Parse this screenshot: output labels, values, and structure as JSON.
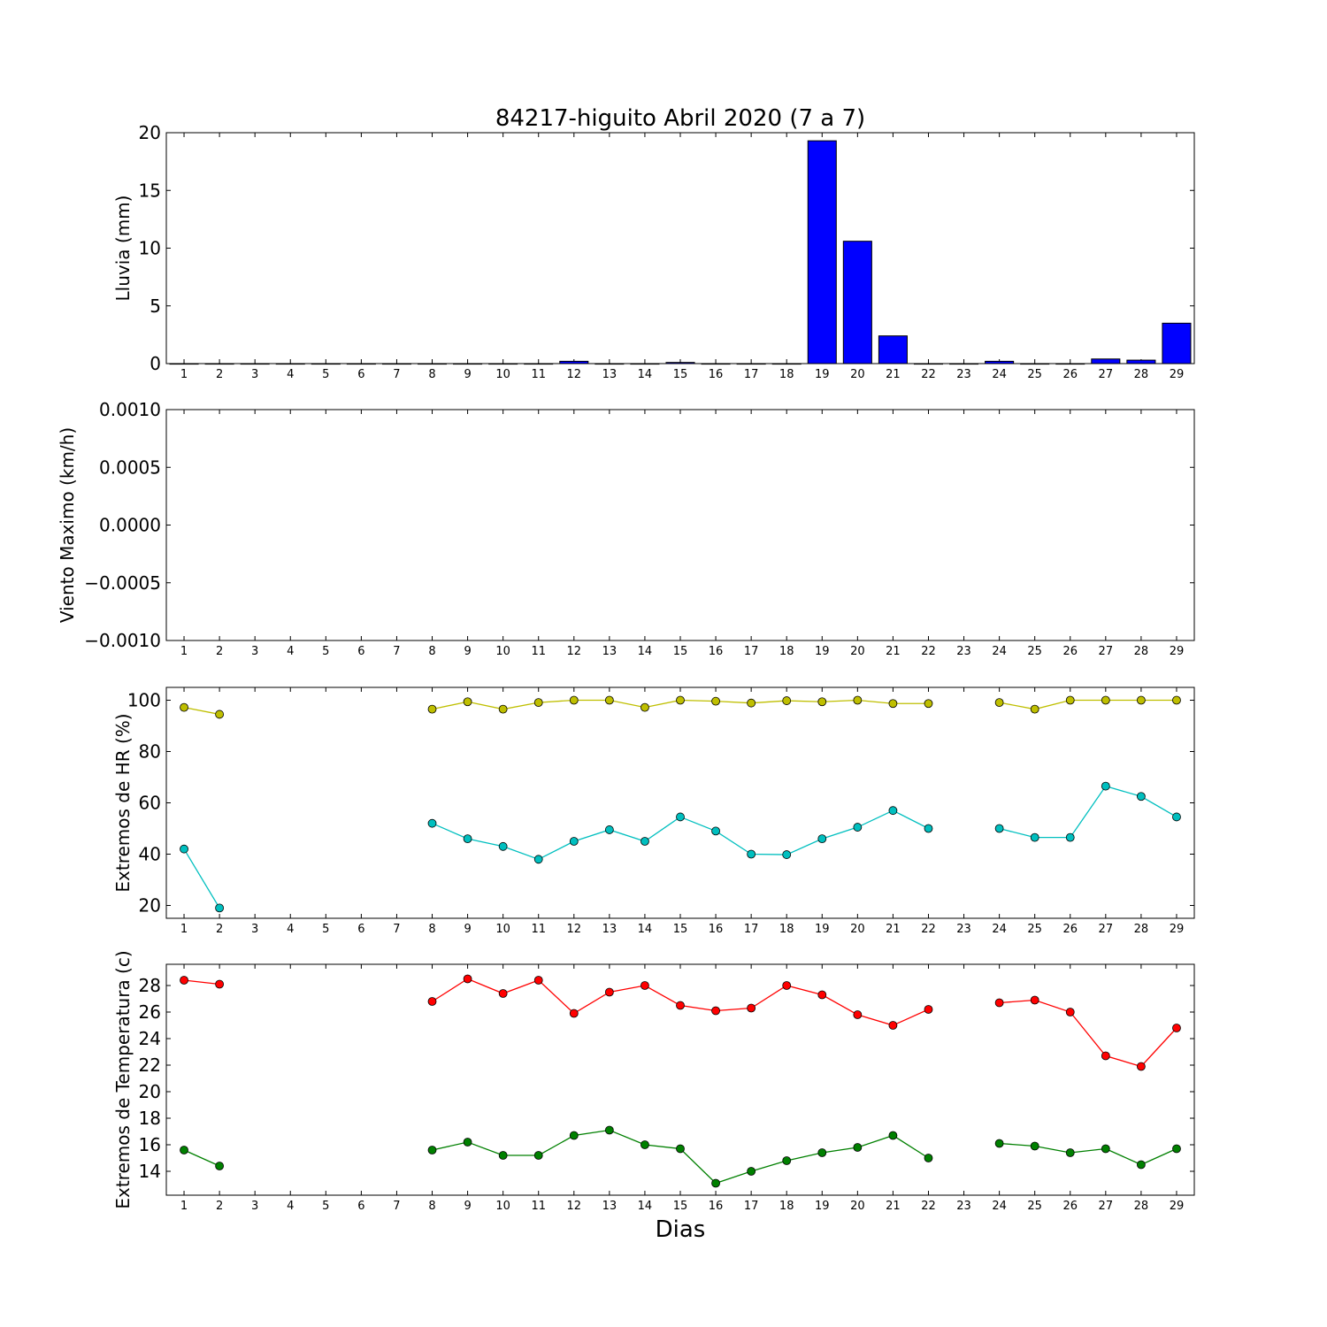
{
  "figure": {
    "title": "84217-higuito Abril 2020  (7 a 7)",
    "xlabel": "Dias"
  },
  "chart_data": [
    {
      "type": "bar",
      "ylabel": "Lluvia (mm)",
      "ylim": [
        0,
        20
      ],
      "yticks": [
        "0",
        "5",
        "10",
        "15",
        "20"
      ],
      "categories": [
        "1",
        "2",
        "3",
        "4",
        "5",
        "6",
        "7",
        "8",
        "9",
        "10",
        "11",
        "12",
        "13",
        "14",
        "15",
        "16",
        "17",
        "18",
        "19",
        "20",
        "21",
        "22",
        "23",
        "24",
        "25",
        "26",
        "27",
        "28",
        "29"
      ],
      "values": [
        0,
        0,
        0,
        0,
        0,
        0,
        0,
        0,
        0,
        0,
        0,
        0.2,
        0,
        0,
        0.1,
        0,
        0,
        0,
        19.3,
        10.6,
        2.4,
        0,
        0,
        0.2,
        0,
        0,
        0.4,
        0.3,
        3.5
      ],
      "colors": {
        "bar": "#0000ff",
        "edge": "#000000"
      }
    },
    {
      "type": "line",
      "ylabel": "Viento Maximo (km/h)",
      "ylim": [
        -0.001,
        0.001
      ],
      "yticks": [
        "−0.0010",
        "−0.0005",
        "0.0000",
        "0.0005",
        "0.0010"
      ],
      "categories": [
        "1",
        "2",
        "3",
        "4",
        "5",
        "6",
        "7",
        "8",
        "9",
        "10",
        "11",
        "12",
        "13",
        "14",
        "15",
        "16",
        "17",
        "18",
        "19",
        "20",
        "21",
        "22",
        "23",
        "24",
        "25",
        "26",
        "27",
        "28",
        "29"
      ],
      "series": []
    },
    {
      "type": "line",
      "ylabel": "Extremos de HR (%)",
      "ylim": [
        15,
        105
      ],
      "yticks": [
        "20",
        "40",
        "60",
        "80",
        "100"
      ],
      "categories": [
        "1",
        "2",
        "3",
        "4",
        "5",
        "6",
        "7",
        "8",
        "9",
        "10",
        "11",
        "12",
        "13",
        "14",
        "15",
        "16",
        "17",
        "18",
        "19",
        "20",
        "21",
        "22",
        "23",
        "24",
        "25",
        "26",
        "27",
        "28",
        "29"
      ],
      "series": [
        {
          "values": [
            97.2,
            94.5,
            null,
            null,
            null,
            null,
            null,
            96.5,
            99.4,
            96.5,
            99.1,
            100,
            100,
            97.2,
            100,
            99.6,
            98.9,
            99.8,
            99.4,
            100,
            98.7,
            98.7,
            null,
            99.1,
            96.5,
            100,
            100,
            100,
            100
          ],
          "color": "#bfbf00"
        },
        {
          "values": [
            42,
            19,
            null,
            null,
            null,
            null,
            null,
            52,
            46,
            43,
            38,
            45,
            49.5,
            45,
            54.5,
            49,
            40,
            39.8,
            46,
            50.5,
            57,
            50,
            null,
            50,
            46.5,
            46.5,
            66.5,
            62.5,
            54.5
          ],
          "color": "#00bfbf"
        }
      ]
    },
    {
      "type": "line",
      "ylabel": "Extremos de Temperatura (c)",
      "ylim": [
        12.2,
        29.6
      ],
      "yticks": [
        "14",
        "16",
        "18",
        "20",
        "22",
        "24",
        "26",
        "28"
      ],
      "categories": [
        "1",
        "2",
        "3",
        "4",
        "5",
        "6",
        "7",
        "8",
        "9",
        "10",
        "11",
        "12",
        "13",
        "14",
        "15",
        "16",
        "17",
        "18",
        "19",
        "20",
        "21",
        "22",
        "23",
        "24",
        "25",
        "26",
        "27",
        "28",
        "29"
      ],
      "series": [
        {
          "values": [
            28.4,
            28.1,
            null,
            null,
            null,
            null,
            null,
            26.8,
            28.5,
            27.4,
            28.4,
            25.9,
            27.5,
            28,
            26.5,
            26.1,
            26.3,
            28,
            27.3,
            25.8,
            25,
            26.2,
            null,
            26.7,
            26.9,
            26,
            22.7,
            21.9,
            24.8
          ],
          "color": "#ff0000"
        },
        {
          "values": [
            15.6,
            14.4,
            null,
            null,
            null,
            null,
            null,
            15.6,
            16.2,
            15.2,
            15.2,
            16.7,
            17.1,
            16,
            15.7,
            13.1,
            14,
            14.8,
            15.4,
            15.8,
            16.7,
            15,
            null,
            16.1,
            15.9,
            15.4,
            15.7,
            14.5,
            15.7
          ],
          "color": "#008000"
        }
      ]
    }
  ]
}
